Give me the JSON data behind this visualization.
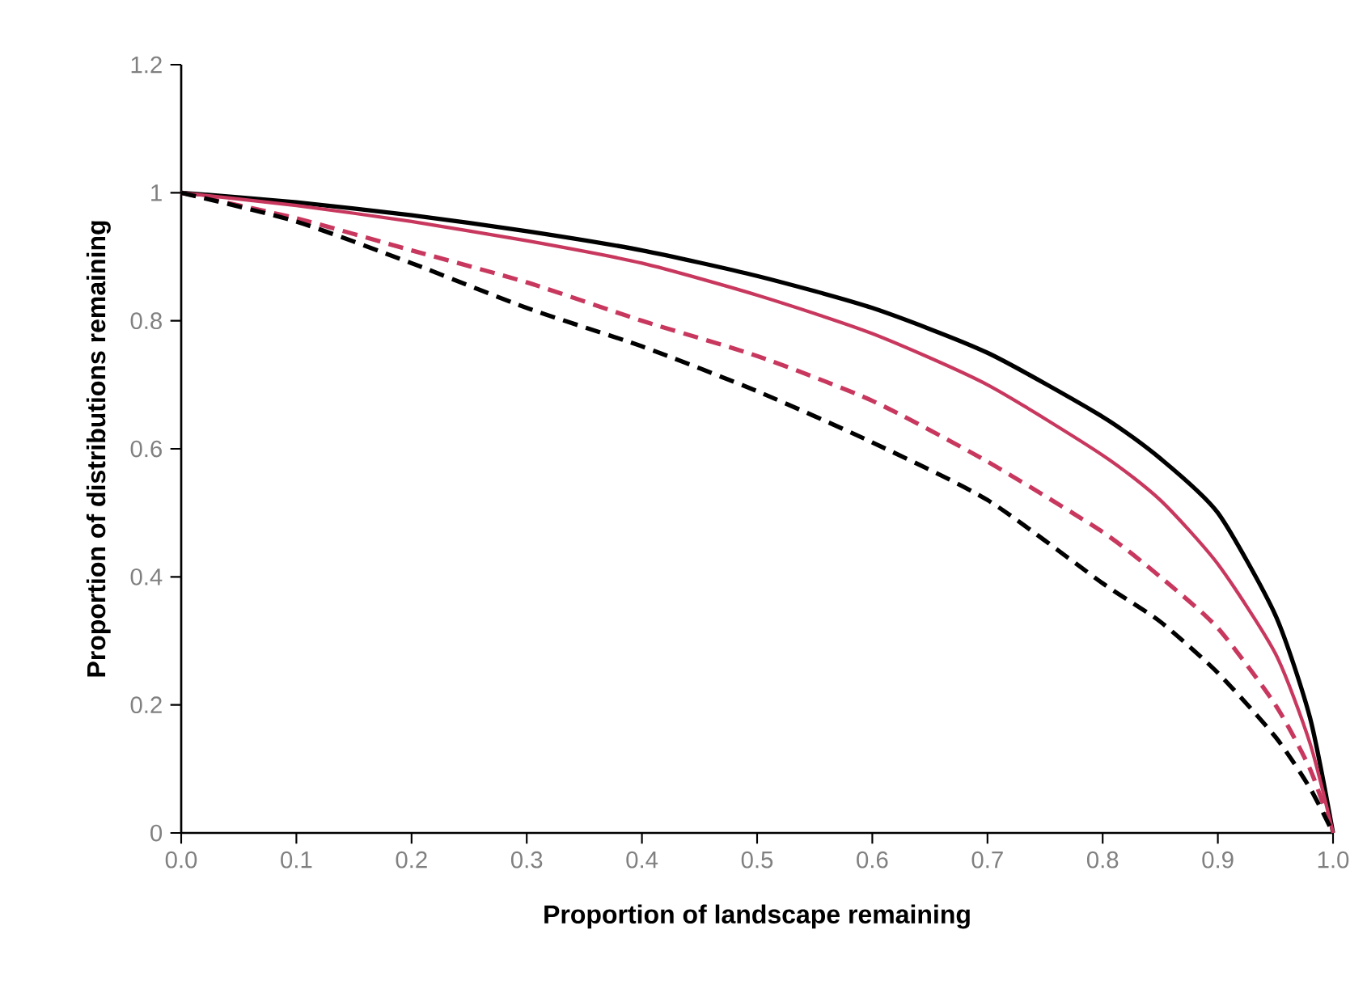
{
  "chart_data": {
    "type": "line",
    "xlabel": "Proportion of landscape remaining",
    "ylabel": "Proportion of distributions remaining",
    "x": [
      0,
      0.1,
      0.2,
      0.3,
      0.4,
      0.5,
      0.6,
      0.7,
      0.8,
      0.85,
      0.9,
      0.95,
      0.98,
      1
    ],
    "series": [
      {
        "color": "#000000",
        "line_style": "solid",
        "values": [
          1,
          0.985,
          0.965,
          0.94,
          0.91,
          0.87,
          0.82,
          0.75,
          0.65,
          0.585,
          0.5,
          0.34,
          0.18,
          0
        ]
      },
      {
        "color": "#c8385e",
        "line_style": "solid",
        "values": [
          1,
          0.98,
          0.955,
          0.925,
          0.89,
          0.84,
          0.78,
          0.7,
          0.59,
          0.52,
          0.42,
          0.28,
          0.14,
          0
        ]
      },
      {
        "color": "#c8385e",
        "line_style": "dashed",
        "values": [
          1,
          0.96,
          0.91,
          0.86,
          0.8,
          0.745,
          0.675,
          0.58,
          0.47,
          0.4,
          0.32,
          0.2,
          0.1,
          0
        ]
      },
      {
        "color": "#000000",
        "line_style": "dashed",
        "values": [
          1,
          0.955,
          0.89,
          0.82,
          0.76,
          0.69,
          0.61,
          0.52,
          0.39,
          0.33,
          0.25,
          0.15,
          0.07,
          0
        ]
      }
    ],
    "xlim": [
      0,
      1
    ],
    "ylim": [
      0,
      1.2
    ],
    "xticks": [
      {
        "value": 0,
        "label": "0.0"
      },
      0.1,
      0.2,
      0.3,
      0.4,
      0.5,
      0.6,
      0.7,
      0.8,
      0.9,
      {
        "value": 1,
        "label": "1.0"
      }
    ],
    "yticks": [
      0,
      0.2,
      0.4,
      0.6,
      0.8,
      1,
      1.2
    ],
    "grid": false,
    "marker": "none"
  }
}
